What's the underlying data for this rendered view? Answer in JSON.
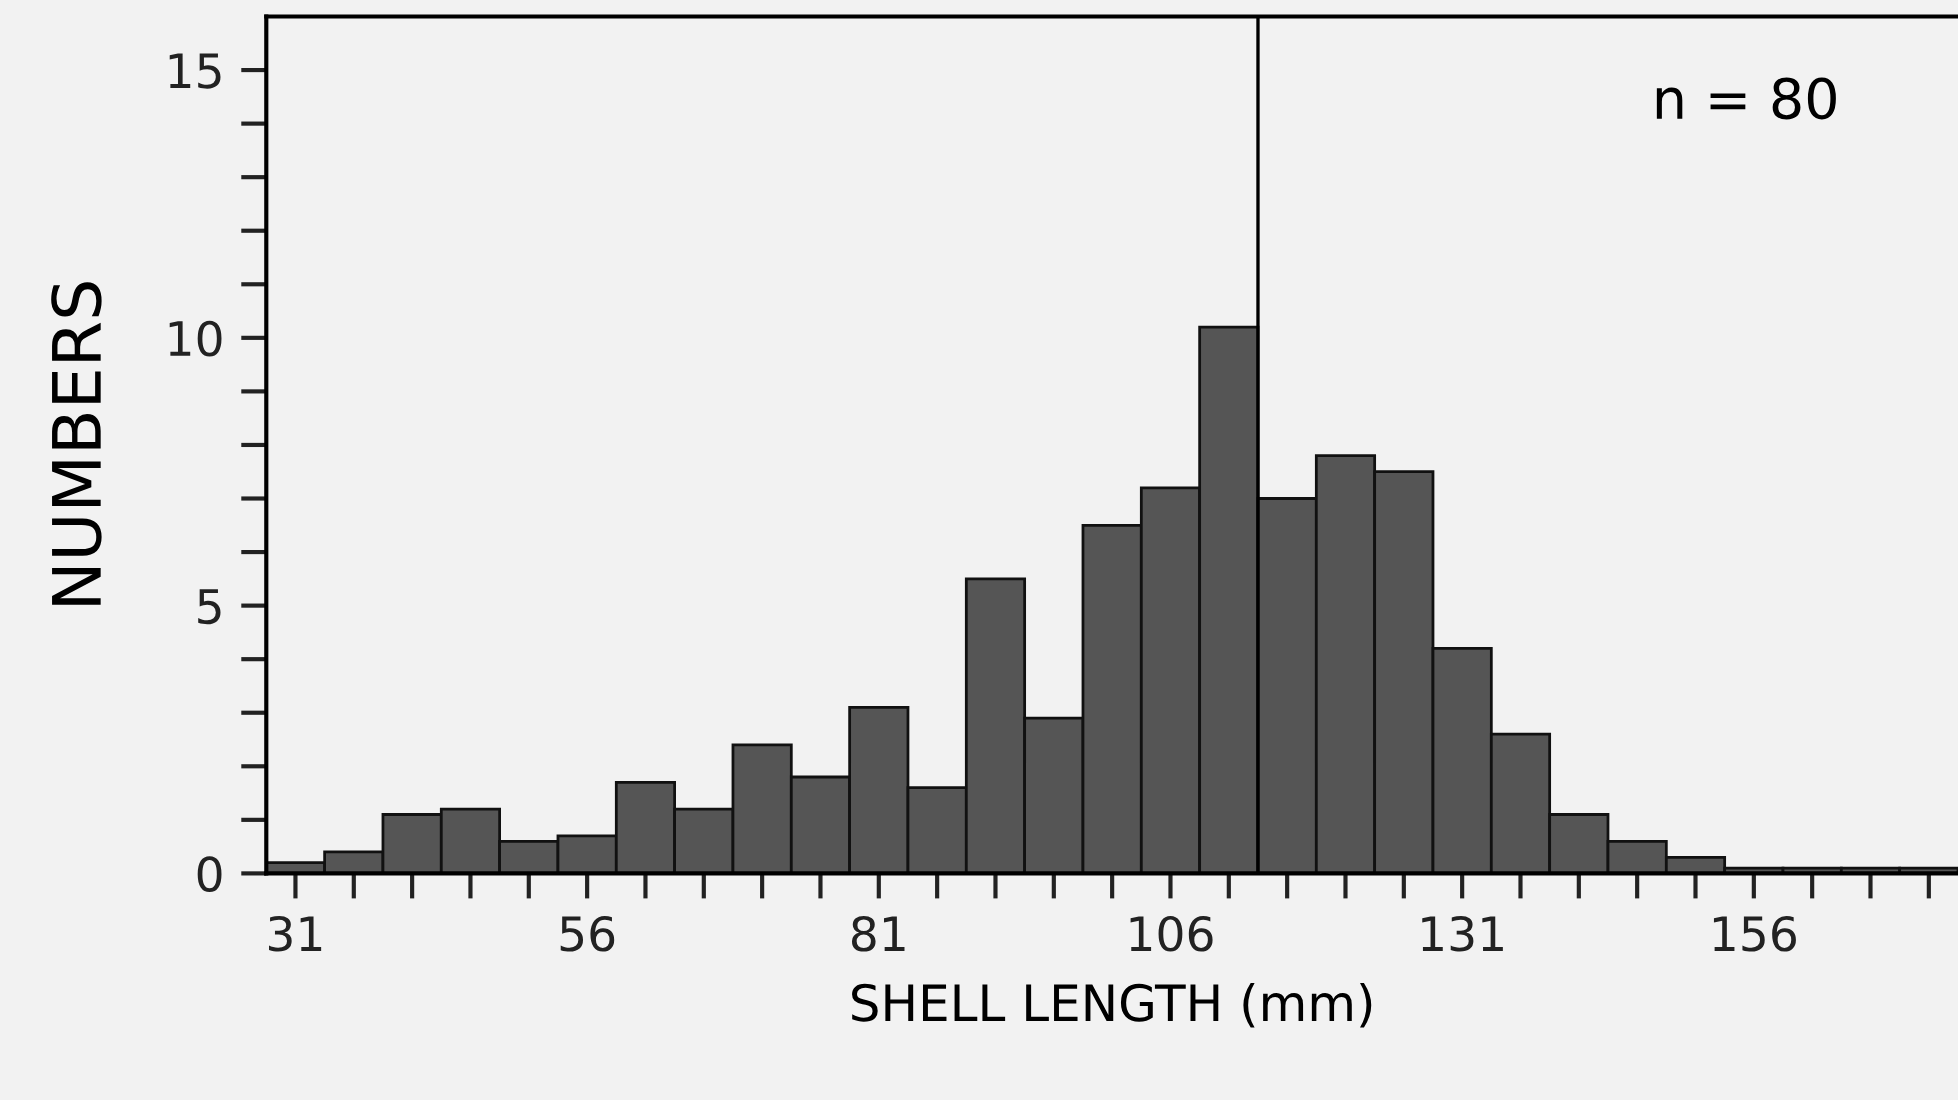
{
  "chart_data": {
    "type": "histogram",
    "xlabel": "SHELL LENGTH (mm)",
    "ylabel": "NUMBERS",
    "annotations": [
      "n = 80"
    ],
    "bins": [
      28.5,
      33.5,
      38.5,
      43.5,
      48.5,
      53.5,
      58.5,
      63.5,
      68.5,
      73.5,
      78.5,
      83.5,
      88.5,
      93.5,
      98.5,
      103.5,
      108.5,
      113.5,
      118.5,
      123.5,
      128.5,
      133.5,
      138.5,
      143.5,
      148.5,
      153.5,
      158.5,
      163.5,
      168.5,
      173.5
    ],
    "values": [
      0.2,
      0.4,
      1.1,
      1.2,
      0.6,
      0.7,
      1.7,
      1.2,
      2.4,
      1.8,
      3.1,
      1.6,
      5.5,
      2.9,
      6.5,
      7.2,
      10.2,
      7.0,
      7.8,
      7.5,
      4.2,
      2.6,
      1.1,
      0.6,
      0.3,
      0.1,
      0.1,
      0.1,
      0.1
    ],
    "color": "#555555",
    "xlim": [
      28.5,
      173.5
    ],
    "ylim": [
      0,
      16
    ],
    "xticks": [
      31,
      {
        "value": 36,
        "label": null
      },
      {
        "value": 41,
        "label": null
      },
      {
        "value": 46,
        "label": null
      },
      {
        "value": 51,
        "label": null
      },
      56,
      {
        "value": 61,
        "label": null
      },
      {
        "value": 66,
        "label": null
      },
      {
        "value": 71,
        "label": null
      },
      {
        "value": 76,
        "label": null
      },
      81,
      {
        "value": 86,
        "label": null
      },
      {
        "value": 91,
        "label": null
      },
      {
        "value": 96,
        "label": null
      },
      {
        "value": 101,
        "label": null
      },
      106,
      {
        "value": 111,
        "label": null
      },
      {
        "value": 116,
        "label": null
      },
      {
        "value": 121,
        "label": null
      },
      {
        "value": 126,
        "label": null
      },
      131,
      {
        "value": 136,
        "label": null
      },
      {
        "value": 141,
        "label": null
      },
      {
        "value": 146,
        "label": null
      },
      {
        "value": 151,
        "label": null
      },
      156,
      {
        "value": 161,
        "label": null
      },
      {
        "value": 166,
        "label": null
      },
      {
        "value": 171,
        "label": null
      }
    ],
    "yticks": [
      0,
      {
        "value": 1,
        "label": null
      },
      {
        "value": 2,
        "label": null
      },
      {
        "value": 3,
        "label": null
      },
      {
        "value": 4,
        "label": null
      },
      5,
      {
        "value": 6,
        "label": null
      },
      {
        "value": 7,
        "label": null
      },
      {
        "value": 8,
        "label": null
      },
      {
        "value": 9,
        "label": null
      },
      10,
      {
        "value": 11,
        "label": null
      },
      {
        "value": 12,
        "label": null
      },
      {
        "value": 13,
        "label": null
      },
      {
        "value": 14,
        "label": null
      },
      15
    ],
    "ref_lines": [
      {
        "axis": "x",
        "value": 113.5,
        "color": "#000000"
      }
    ],
    "grid": false,
    "legend": false
  }
}
